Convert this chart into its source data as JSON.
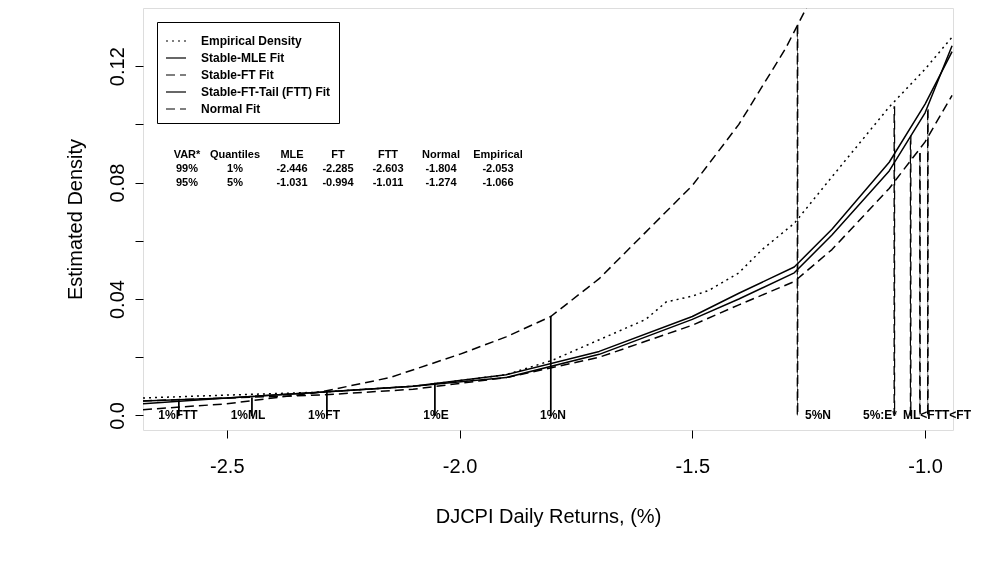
{
  "chart_data": {
    "type": "line",
    "xlabel": "DJCPI Daily Returns, (%)",
    "ylabel": "Estimated Density",
    "xlim": [
      -2.68,
      -0.94
    ],
    "ylim": [
      -0.005,
      0.14
    ],
    "xticks": [
      {
        "value": -2.5,
        "label": "-2.5"
      },
      {
        "value": -2.0,
        "label": "-2.0"
      },
      {
        "value": -1.5,
        "label": "-1.5"
      },
      {
        "value": -1.0,
        "label": "-1.0"
      }
    ],
    "yticks": [
      {
        "value": 0,
        "label": "0.0"
      },
      {
        "value": 0.02,
        "label": null
      },
      0.04,
      {
        "value": 0.06,
        "label": null
      },
      0.08,
      {
        "value": 0.1,
        "label": null
      },
      0.12
    ],
    "grid": false,
    "legend": "top left",
    "series": [
      {
        "name": "Empirical Density",
        "color": "#000000",
        "line_style": "dotted",
        "x": [
          -2.68,
          -2.5,
          -2.3,
          -2.1,
          -1.9,
          -1.8,
          -1.7,
          -1.6,
          -1.556,
          -1.5,
          -1.464,
          -1.4,
          -1.35,
          -1.281,
          -1.2,
          -1.077,
          -1.0,
          -0.942
        ],
        "values": [
          0.006,
          0.007,
          0.008,
          0.01,
          0.014,
          0.019,
          0.026,
          0.033,
          0.039,
          0.041,
          0.043,
          0.049,
          0.057,
          0.066,
          0.082,
          0.106,
          0.119,
          0.13
        ]
      },
      {
        "name": "Stable-MLE Fit",
        "color": "#000000",
        "line_style": "solid",
        "x": [
          -2.68,
          -2.5,
          -2.3,
          -2.1,
          -1.9,
          -1.7,
          -1.5,
          -1.4,
          -1.281,
          -1.2,
          -1.077,
          -1.0,
          -0.942
        ],
        "values": [
          0.005,
          0.006,
          0.008,
          0.01,
          0.014,
          0.022,
          0.034,
          0.042,
          0.051,
          0.064,
          0.087,
          0.107,
          0.125
        ]
      },
      {
        "name": "Stable-FT Fit",
        "color": "#000000",
        "line_style": "dashed",
        "x": [
          -2.68,
          -2.5,
          -2.3,
          -2.1,
          -1.9,
          -1.7,
          -1.5,
          -1.4,
          -1.281,
          -1.2,
          -1.077,
          -1.0,
          -0.942
        ],
        "values": [
          0.005,
          0.006,
          0.007,
          0.009,
          0.013,
          0.02,
          0.031,
          0.038,
          0.046,
          0.057,
          0.078,
          0.094,
          0.11
        ]
      },
      {
        "name": "Stable-FT-Tail (FTT) Fit",
        "color": "#000000",
        "line_style": "solid",
        "x": [
          -2.68,
          -2.5,
          -2.3,
          -2.1,
          -1.9,
          -1.7,
          -1.5,
          -1.4,
          -1.281,
          -1.2,
          -1.077,
          -1.0,
          -0.942
        ],
        "values": [
          0.004,
          0.006,
          0.008,
          0.01,
          0.013,
          0.021,
          0.033,
          0.04,
          0.049,
          0.062,
          0.084,
          0.104,
          0.127
        ]
      },
      {
        "name": "Normal Fit",
        "color": "#000000",
        "line_style": "dashed",
        "x": [
          -2.68,
          -2.5,
          -2.3,
          -2.15,
          -2.0,
          -1.9,
          -1.804,
          -1.7,
          -1.6,
          -1.5,
          -1.4,
          -1.3,
          -1.255
        ],
        "values": [
          0.002,
          0.004,
          0.008,
          0.013,
          0.021,
          0.027,
          0.034,
          0.047,
          0.063,
          0.079,
          0.1,
          0.126,
          0.14
        ]
      },
      {
        "type": "bar",
        "color": "#000000",
        "line_style": "solid",
        "x": [
          -2.603,
          -2.446,
          -2.285,
          -2.053,
          -1.804
        ],
        "values": [
          0.005,
          0.006,
          0.008,
          0.011,
          0.034
        ]
      },
      {
        "type": "bar",
        "color": "#000000",
        "line_style": "dashed",
        "x": [
          -1.274,
          -1.066,
          -1.031,
          -1.011,
          -0.994
        ],
        "values": [
          0.134,
          0.106,
          0.096,
          0.09,
          0.105
        ]
      }
    ],
    "annotations": [
      "VAR* Quantiles MLE FT FTT Normal Empirical",
      "99% 1% -2.446 -2.285 -2.603 -1.804 -2.053",
      "95% 5% -1.031 -0.994 -1.011 -1.274 -1.066",
      "1%FTT",
      "1%ML",
      "1%FT",
      "1%E",
      "1%N",
      "5%N",
      "5%:E*",
      "ML<FTT<FT"
    ]
  }
}
